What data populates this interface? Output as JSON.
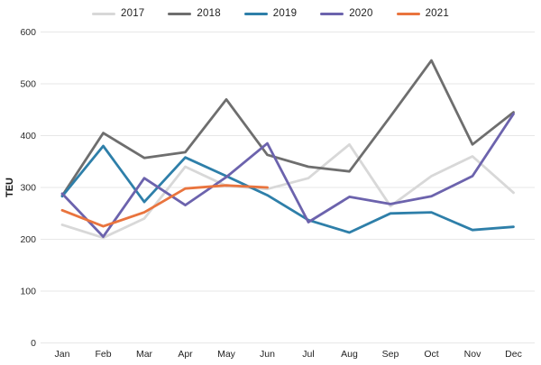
{
  "chart_data": {
    "type": "line",
    "title": "",
    "xlabel": "",
    "ylabel": "TEU",
    "ylim": [
      0,
      600
    ],
    "yticks": [
      0,
      100,
      200,
      300,
      400,
      500,
      600
    ],
    "grid": "horizontal",
    "legend_position": "top-center",
    "gridline_color": "#e7e7e7",
    "categories": [
      "Jan",
      "Feb",
      "Mar",
      "Apr",
      "May",
      "Jun",
      "Jul",
      "Aug",
      "Sep",
      "Oct",
      "Nov",
      "Dec"
    ],
    "series": [
      {
        "name": "2017",
        "color": "#d8d8d8",
        "values": [
          228,
          203,
          240,
          340,
          303,
          297,
          318,
          383,
          264,
          322,
          360,
          290
        ]
      },
      {
        "name": "2018",
        "color": "#6e6e6e",
        "values": [
          284,
          405,
          357,
          368,
          470,
          363,
          340,
          331,
          437,
          545,
          383,
          445
        ]
      },
      {
        "name": "2019",
        "color": "#2e7fa9",
        "values": [
          283,
          380,
          272,
          358,
          322,
          285,
          237,
          213,
          250,
          252,
          218,
          224
        ]
      },
      {
        "name": "2020",
        "color": "#6c63ad",
        "values": [
          288,
          205,
          318,
          266,
          320,
          385,
          233,
          282,
          268,
          283,
          322,
          442
        ]
      },
      {
        "name": "2021",
        "color": "#e9743e",
        "values": [
          256,
          225,
          252,
          298,
          304,
          300,
          null,
          null,
          null,
          null,
          null,
          null
        ]
      }
    ]
  }
}
